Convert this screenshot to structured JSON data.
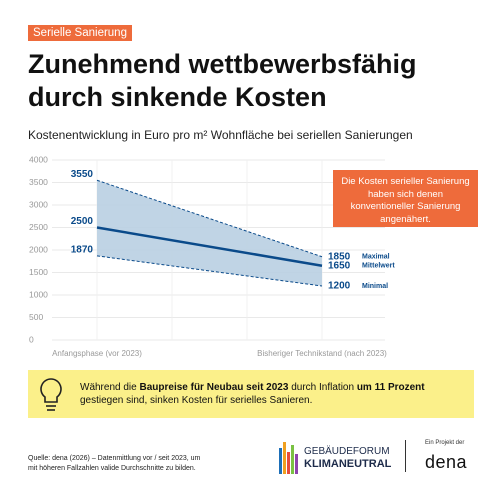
{
  "header": {
    "tag": "Serielle Sanierung",
    "title": [
      "Zunehmend wettbewerbsfähig",
      "durch sinkende Kosten"
    ]
  },
  "chart_data": {
    "type": "line",
    "title": "Kostenentwicklung in Euro pro m² Wohnfläche bei seriellen Sanierungen",
    "categories": [
      "Anfangsphase (vor 2023)",
      "Bisheriger Technikstand (nach 2023)"
    ],
    "series": [
      {
        "name": "Maximal",
        "color": "#0a4a8a",
        "dashed": true,
        "values": [
          3550,
          1850
        ]
      },
      {
        "name": "Mittelwert",
        "color": "#0a4a8a",
        "dashed": false,
        "values": [
          2500,
          1650
        ]
      },
      {
        "name": "Minimal",
        "color": "#0a4a8a",
        "dashed": true,
        "values": [
          1870,
          1200
        ]
      }
    ],
    "band_color": "#b9cfe2",
    "ylim": [
      0,
      4000
    ],
    "yticks": [
      0,
      500,
      1000,
      1500,
      2000,
      2500,
      3000,
      3500,
      4000
    ],
    "grid": true,
    "annotation": "Die Kosten serieller Sanierung haben sich denen konventioneller Sanierung angenähert."
  },
  "callout": [
    {
      "text": "Während die ",
      "bold": false
    },
    {
      "text": "Baupreise für Neubau seit 2023",
      "bold": true
    },
    {
      "text": " durch Inflation ",
      "bold": false
    },
    {
      "text": "um 11 Prozent",
      "bold": true
    },
    {
      "text": " gestiegen sind, sinken Kosten für serielles Sanieren.",
      "bold": false
    }
  ],
  "footer": {
    "source": [
      "Quelle: dena (2026) – Datenmittlung vor / seit 2023, um",
      "mit höheren Fallzahlen valide Durchschnitte zu bilden."
    ],
    "logo": [
      "GEBÄUDEFORUM",
      "KLIMANEUTRAL"
    ],
    "project": "Ein Projekt der",
    "org": "dena"
  }
}
